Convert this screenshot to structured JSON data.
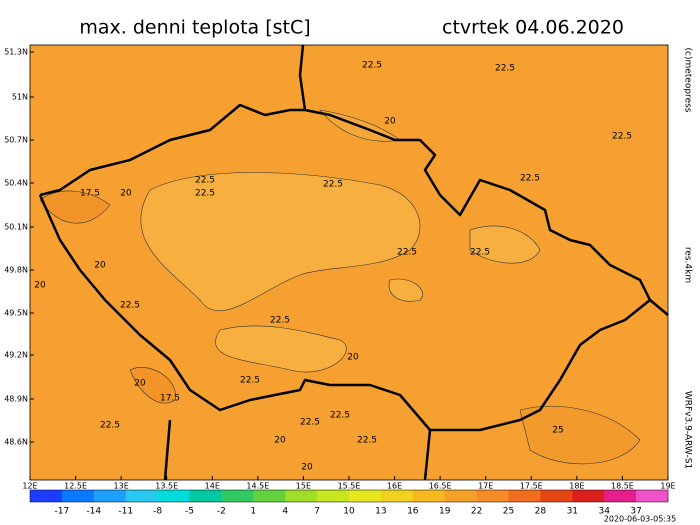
{
  "header": {
    "title": "max. denni teplota [stC]",
    "date": "ctvrtek 04.06.2020"
  },
  "map": {
    "lat_labels": [
      "51.3N",
      "51N",
      "50.7N",
      "50.4N",
      "50.1N",
      "49.8N",
      "49.5N",
      "49.2N",
      "48.9N",
      "48.6N"
    ],
    "lon_labels": [
      "12E",
      "12.5E",
      "13E",
      "13.5E",
      "14E",
      "14.5E",
      "15E",
      "15.5E",
      "16E",
      "16.5E",
      "17E",
      "17.5E",
      "18E",
      "18.5E",
      "19E"
    ],
    "contour_labels": [
      "22.5",
      "22.5",
      "22.5",
      "22.5",
      "22.5",
      "22.5",
      "22.5",
      "22.5",
      "22.5",
      "22.5",
      "22.5",
      "22.5",
      "22.5",
      "22.5",
      "22.5",
      "22.5",
      "20",
      "20",
      "20",
      "20",
      "20",
      "20",
      "20",
      "20",
      "17.5",
      "17.5",
      "25"
    ]
  },
  "colorbar": {
    "labels": [
      -17,
      -14,
      -11,
      -8,
      -5,
      -2,
      1,
      4,
      7,
      10,
      13,
      16,
      19,
      22,
      25,
      28,
      31,
      34,
      37
    ],
    "colors": [
      "#1e3cff",
      "#0a78ff",
      "#1ea0ff",
      "#28c8f0",
      "#00dcdc",
      "#00c8a0",
      "#32c864",
      "#64d23c",
      "#a0dc28",
      "#c8e61e",
      "#e6e61e",
      "#f0d21e",
      "#f5b91e",
      "#f5a028",
      "#f58c28",
      "#f06e1e",
      "#e64614",
      "#dc1e1e",
      "#e61e8c",
      "#f050c8"
    ]
  },
  "side": {
    "copyright": "(c)meteopress",
    "resolution": "res.4km",
    "model": "WRFv3.9-ARW-S1",
    "timestamp": "2020-06-03-05:35"
  }
}
